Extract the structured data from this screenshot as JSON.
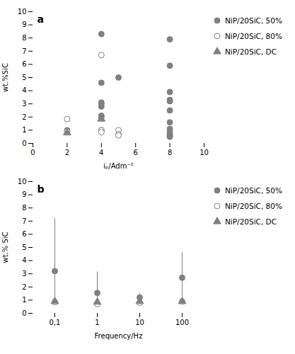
{
  "chart_data": [
    {
      "type": "scatter",
      "xlabel": "iₚ/Adm⁻²",
      "ylabel": "wt.%SiC",
      "annotations": [
        "a"
      ],
      "xlim": [
        0,
        10
      ],
      "ylim": [
        0,
        10
      ],
      "xticks": [
        0,
        2,
        4,
        6,
        8,
        10
      ],
      "yticks": [
        0,
        1,
        2,
        3,
        4,
        5,
        6,
        7,
        8,
        9,
        10
      ],
      "grid": false,
      "legend": "right",
      "series": [
        {
          "name": "NiP/20SiC, 50%",
          "color": "#808080",
          "marker": "circle",
          "x": [
            2,
            4,
            4,
            4,
            4,
            4,
            4,
            4,
            4,
            5,
            8,
            8,
            8,
            8,
            8,
            8,
            8,
            8,
            8,
            8,
            8,
            8
          ],
          "values": [
            1.0,
            8.3,
            4.6,
            3.1,
            3.0,
            2.8,
            2.1,
            2.0,
            1.0,
            5.0,
            7.9,
            5.9,
            3.9,
            3.3,
            3.2,
            2.5,
            1.6,
            1.1,
            0.9,
            0.7,
            0.6,
            0.5
          ]
        },
        {
          "name": "NiP/20SiC, 80%",
          "color": "#808080",
          "marker": "open circle",
          "x": [
            2,
            2,
            4,
            4,
            4,
            5,
            5,
            5
          ],
          "values": [
            1.85,
            0.9,
            6.7,
            1.0,
            0.85,
            1.0,
            0.7,
            0.6
          ]
        },
        {
          "name": "NiP/20SiC, DC",
          "color": "#808080",
          "marker": "triangle",
          "x": [
            2,
            4
          ],
          "values": [
            0.8,
            1.85
          ]
        }
      ]
    },
    {
      "type": "scatter",
      "xlabel": "Frequency/Hz",
      "ylabel": "wt.% SiC",
      "annotations": [
        "b"
      ],
      "categories": [
        "0,1",
        "1",
        "10",
        "100"
      ],
      "ylim": [
        0,
        10
      ],
      "yticks": [
        0,
        1,
        2,
        3,
        4,
        5,
        6,
        7,
        8,
        9,
        10
      ],
      "grid": false,
      "legend": "right",
      "series": [
        {
          "name": "NiP/20SiC, 50%",
          "color": "#808080",
          "marker": "circle",
          "values": [
            3.2,
            1.55,
            1.2,
            2.7
          ],
          "error_y": [
            3.2,
            1.55,
            1.05,
            2.7
          ],
          "error_minus": [
            2.35,
            0.85,
            0.35,
            1.85
          ],
          "error_plus": [
            4.0,
            1.6,
            0.45,
            1.9
          ]
        },
        {
          "name": "NiP/20SiC, 80%",
          "color": "#808080",
          "marker": "open circle",
          "values": [
            0.85,
            0.7,
            0.8,
            0.9
          ]
        },
        {
          "name": "NiP/20SiC, DC",
          "color": "#808080",
          "marker": "triangle",
          "values": [
            0.9,
            0.85,
            0.9,
            0.9
          ]
        }
      ]
    }
  ]
}
